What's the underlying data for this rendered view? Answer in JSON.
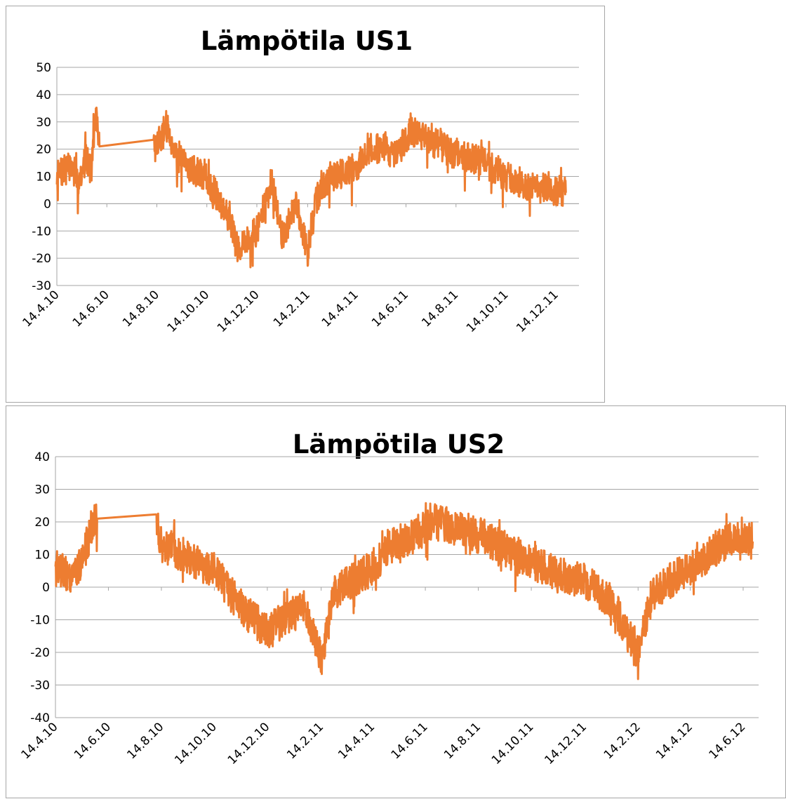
{
  "series_color": "#ed7d31",
  "chart_data": [
    {
      "type": "line",
      "title": "Lämpötila US1",
      "xlabel": "",
      "ylabel": "",
      "ylim": [
        -30,
        50
      ],
      "yticks": [
        50,
        40,
        30,
        20,
        10,
        0,
        -10,
        -20,
        -30
      ],
      "xticks": [
        "14.4.10",
        "14.6.10",
        "14.8.10",
        "14.10.10",
        "14.12.10",
        "14.2.11",
        "14.4.11",
        "14.6.11",
        "14.8.11",
        "14.10.11",
        "14.12.11"
      ],
      "grid": true,
      "legend": "none",
      "series": [
        {
          "x": [
            "14.4.10",
            "1.5.10",
            "10.5.10",
            "20.5.10",
            "26.5.10",
            "1.6.10",
            "5.6.10",
            "10.8.10",
            "14.8.10",
            "25.8.10",
            "10.9.10",
            "14.10.10",
            "10.11.10",
            "20.11.10",
            "14.12.10",
            "1.1.11",
            "14.1.11",
            "1.2.11",
            "14.2.11",
            "25.2.11",
            "14.3.11",
            "14.4.11",
            "1.5.11",
            "20.5.11",
            "1.6.11",
            "20.6.11",
            "1.7.11",
            "14.8.11",
            "14.9.11",
            "14.10.11",
            "14.11.11",
            "14.12.11",
            "26.12.11"
          ],
          "values": [
            10,
            14,
            8,
            17,
            12,
            34,
            21,
            21,
            21,
            29,
            16,
            9,
            -5,
            -16,
            -10,
            8,
            -12,
            0,
            -18,
            2,
            10,
            13,
            20,
            21,
            17,
            27,
            25,
            18,
            16,
            10,
            6,
            5,
            4
          ]
        }
      ]
    },
    {
      "type": "line",
      "title": "Lämpötila US2",
      "xlabel": "",
      "ylabel": "",
      "ylim": [
        -40,
        40
      ],
      "yticks": [
        40,
        30,
        20,
        10,
        0,
        -10,
        -20,
        -30,
        -40
      ],
      "xticks": [
        "14.4.10",
        "14.6.10",
        "14.8.10",
        "14.10.10",
        "14.12.10",
        "14.2.11",
        "14.4.11",
        "14.6.11",
        "14.8.11",
        "14.10.11",
        "14.12.11",
        "14.2.12",
        "14.4.12",
        "14.6.12"
      ],
      "grid": true,
      "legend": "none",
      "series": [
        {
          "x": [
            "14.4.10",
            "1.5.10",
            "15.5.10",
            "25.5.10",
            "1.6.10",
            "8.8.10",
            "14.8.10",
            "10.9.10",
            "14.10.10",
            "10.11.10",
            "14.12.10",
            "1.1.11",
            "25.1.11",
            "14.2.11",
            "1.3.11",
            "14.4.11",
            "1.5.11",
            "1.6.11",
            "1.7.11",
            "14.8.11",
            "14.9.11",
            "14.10.11",
            "14.11.11",
            "14.12.11",
            "14.1.12",
            "14.2.12",
            "1.3.12",
            "14.4.12",
            "14.5.12",
            "14.6.12",
            "25.6.12"
          ],
          "values": [
            6,
            4,
            8,
            18,
            21,
            20,
            13,
            10,
            5,
            -5,
            -14,
            -10,
            -6,
            -22,
            -2,
            6,
            12,
            16,
            20,
            16,
            12,
            8,
            4,
            2,
            -4,
            -21,
            -2,
            6,
            12,
            16,
            14
          ]
        }
      ]
    }
  ]
}
